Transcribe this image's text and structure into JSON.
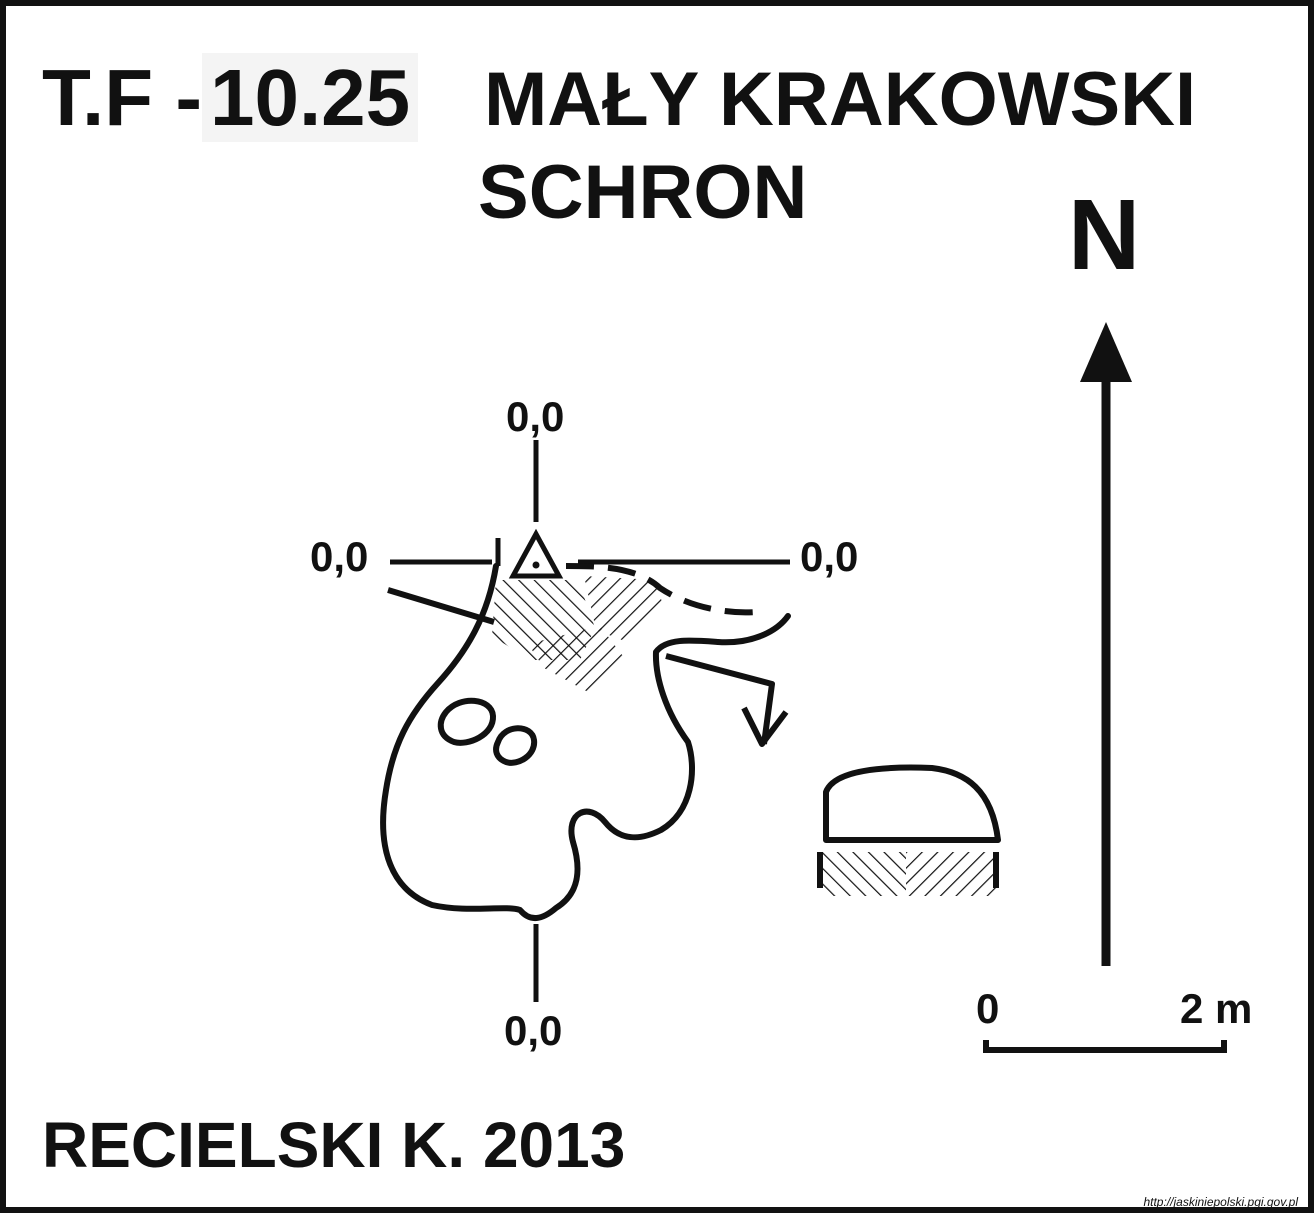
{
  "header": {
    "code_prefix": "T.F -",
    "code_number": "10.25",
    "title_line1": "MAŁY KRAKOWSKI",
    "title_line2": "SCHRON"
  },
  "north_label": "N",
  "elevations": {
    "top": "0,0",
    "left": "0,0",
    "right": "0,0",
    "bottom": "0,0"
  },
  "scale_bar": {
    "start_label": "0",
    "end_label": "2 m"
  },
  "author": "RECIELSKI K. 2013",
  "credit": "http://jaskiniepolski.pgi.gov.pl",
  "colors": {
    "ink": "#111111",
    "background": "#ffffff"
  }
}
